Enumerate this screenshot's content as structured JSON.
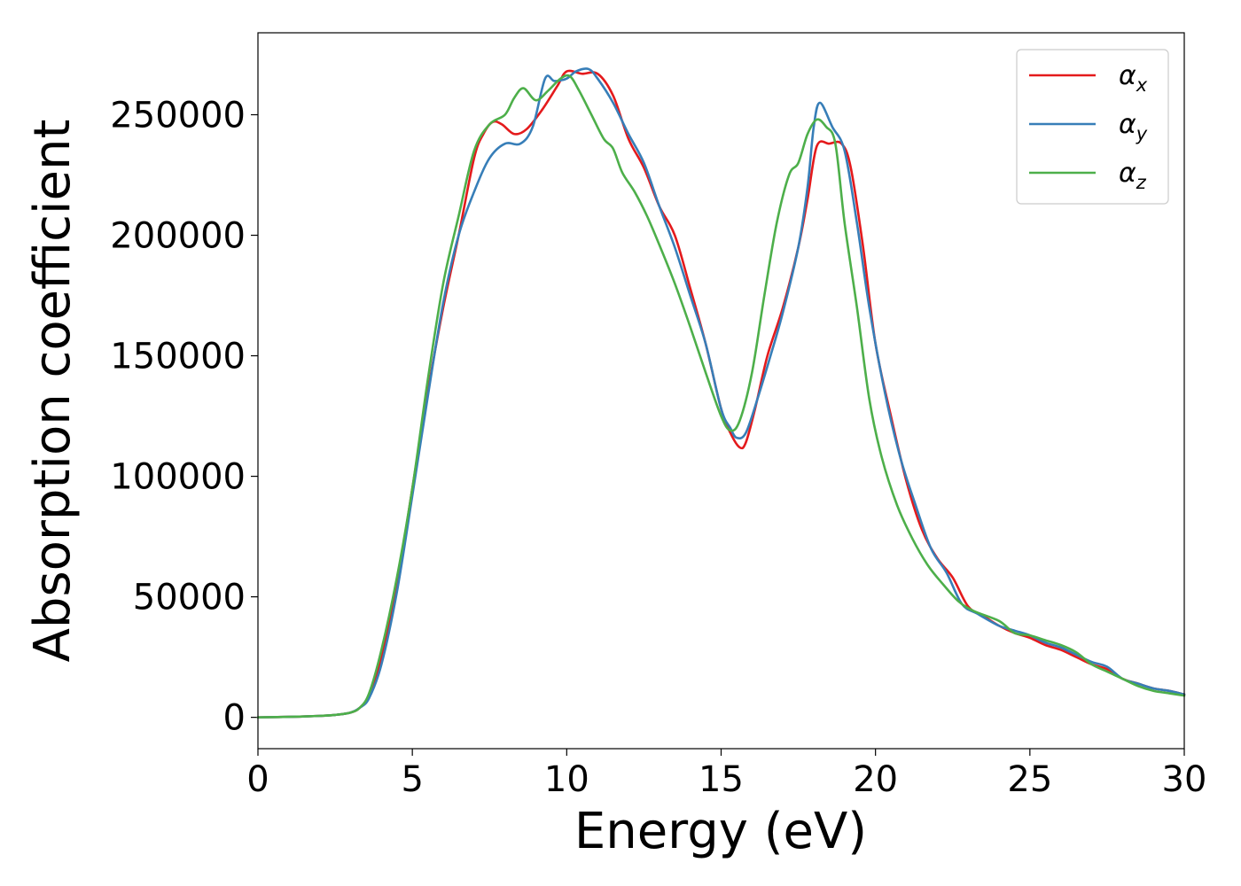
{
  "chart_data": {
    "type": "line",
    "title": "",
    "xlabel": "Energy (eV)",
    "ylabel": "Absorption coefficient",
    "xlim": [
      0,
      30
    ],
    "ylim": [
      -13000,
      284000
    ],
    "xticks": [
      0,
      5,
      10,
      15,
      20,
      25,
      30
    ],
    "yticks": [
      0,
      50000,
      100000,
      150000,
      200000,
      250000
    ],
    "grid": false,
    "legend_position": "top-right",
    "series": [
      {
        "name": "αx",
        "symbol": "α",
        "subscript": "x",
        "color": "#e41a1c",
        "x": [
          0,
          1,
          2,
          2.5,
          3,
          3.3,
          3.6,
          4,
          4.5,
          5,
          5.5,
          6,
          6.5,
          7,
          7.3,
          7.6,
          7.9,
          8.3,
          8.7,
          9.2,
          9.7,
          10,
          10.5,
          11,
          11.5,
          12,
          12.5,
          13,
          13.5,
          14,
          14.5,
          15,
          15.3,
          15.6,
          15.8,
          16.1,
          16.5,
          17,
          17.5,
          17.8,
          18.1,
          18.5,
          18.9,
          19.2,
          19.6,
          20,
          20.5,
          21,
          21.5,
          22,
          22.5,
          23,
          23.5,
          24,
          24.5,
          25,
          25.5,
          26,
          26.5,
          27,
          27.5,
          28,
          28.5,
          29,
          29.5,
          30
        ],
        "y": [
          0,
          200,
          600,
          1000,
          2000,
          4000,
          9000,
          25000,
          55000,
          95000,
          135000,
          170000,
          200000,
          232000,
          242000,
          247000,
          246000,
          242000,
          244000,
          252000,
          262000,
          268000,
          267000,
          267000,
          258000,
          240000,
          228000,
          212000,
          200000,
          178000,
          155000,
          128000,
          118000,
          112000,
          114000,
          128000,
          150000,
          170000,
          195000,
          215000,
          237000,
          238000,
          238000,
          228000,
          195000,
          155000,
          125000,
          98000,
          78000,
          66000,
          58000,
          46000,
          42000,
          38000,
          35000,
          33000,
          30000,
          28000,
          25000,
          22000,
          20000,
          16000,
          14000,
          12000,
          11000,
          9500
        ]
      },
      {
        "name": "αy",
        "symbol": "α",
        "subscript": "y",
        "color": "#377eb8",
        "x": [
          0,
          1,
          2,
          2.5,
          3,
          3.3,
          3.6,
          4,
          4.5,
          5,
          5.5,
          6,
          6.5,
          7,
          7.5,
          8,
          8.5,
          8.9,
          9.3,
          9.6,
          10,
          10.3,
          10.7,
          11,
          11.5,
          12,
          12.5,
          13,
          13.5,
          14,
          14.5,
          15,
          15.3,
          15.5,
          15.8,
          16.2,
          16.6,
          17,
          17.5,
          17.8,
          18,
          18.2,
          18.6,
          19,
          19.4,
          19.8,
          20.3,
          20.8,
          21.3,
          21.8,
          22.3,
          22.8,
          23.3,
          24,
          24.5,
          25,
          25.5,
          26,
          26.5,
          27,
          27.5,
          28,
          28.5,
          29,
          29.5,
          30
        ],
        "y": [
          0,
          200,
          600,
          1000,
          2000,
          4000,
          8000,
          22000,
          52000,
          92000,
          133000,
          172000,
          200000,
          218000,
          232000,
          238000,
          238000,
          245000,
          265000,
          264000,
          265000,
          268000,
          269000,
          265000,
          255000,
          242000,
          230000,
          212000,
          195000,
          175000,
          155000,
          128000,
          120000,
          116000,
          118000,
          133000,
          150000,
          168000,
          195000,
          220000,
          245000,
          255000,
          245000,
          235000,
          205000,
          170000,
          135000,
          108000,
          88000,
          70000,
          60000,
          47000,
          43000,
          38000,
          36000,
          34000,
          31000,
          29000,
          26000,
          23000,
          21000,
          16000,
          14000,
          12000,
          11000,
          9500
        ]
      },
      {
        "name": "αz",
        "symbol": "α",
        "subscript": "z",
        "color": "#4daf4a",
        "x": [
          0,
          1,
          2,
          2.5,
          3,
          3.3,
          3.6,
          4,
          4.5,
          5,
          5.5,
          6,
          6.5,
          7,
          7.5,
          8,
          8.3,
          8.6,
          9,
          9.4,
          9.8,
          10.1,
          10.4,
          10.8,
          11.2,
          11.5,
          11.8,
          12.2,
          12.6,
          13,
          13.5,
          14,
          14.5,
          15,
          15.3,
          15.6,
          16,
          16.4,
          16.8,
          17.2,
          17.5,
          17.8,
          18.1,
          18.4,
          18.7,
          19,
          19.4,
          19.8,
          20.2,
          20.7,
          21.2,
          21.7,
          22.2,
          22.7,
          23.2,
          24,
          24.5,
          25,
          25.5,
          26,
          26.5,
          27,
          27.5,
          28,
          28.5,
          29,
          29.5,
          30
        ],
        "y": [
          0,
          200,
          600,
          1000,
          2000,
          4000,
          10000,
          28000,
          58000,
          95000,
          140000,
          180000,
          208000,
          235000,
          246000,
          250000,
          257000,
          261000,
          256000,
          260000,
          265000,
          266000,
          260000,
          250000,
          240000,
          236000,
          226000,
          218000,
          208000,
          196000,
          180000,
          162000,
          143000,
          125000,
          119000,
          123000,
          143000,
          175000,
          205000,
          225000,
          230000,
          242000,
          248000,
          245000,
          238000,
          205000,
          170000,
          132000,
          108000,
          88000,
          74000,
          63000,
          55000,
          48000,
          44000,
          40000,
          35000,
          34000,
          32000,
          30000,
          27000,
          22000,
          19000,
          16000,
          13000,
          11000,
          10000,
          9000
        ]
      }
    ]
  }
}
